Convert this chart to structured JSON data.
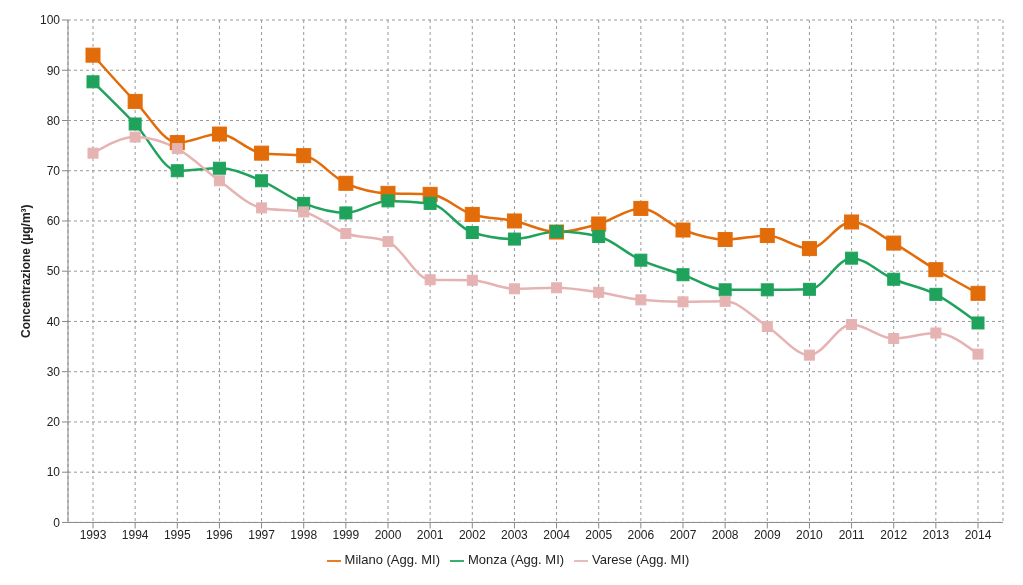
{
  "chart_data": {
    "type": "line",
    "ylabel": "Concentrazione (µg/m³)",
    "categories": [
      "1993",
      "1994",
      "1995",
      "1996",
      "1997",
      "1998",
      "1999",
      "2000",
      "2001",
      "2002",
      "2003",
      "2004",
      "2005",
      "2006",
      "2007",
      "2008",
      "2009",
      "2010",
      "2011",
      "2012",
      "2013",
      "2014"
    ],
    "series": [
      {
        "name": "Milano (Agg. MI)",
        "color": "#e36c0a",
        "values": [
          93,
          83.8,
          75.6,
          77.3,
          73.5,
          73,
          67.5,
          65.5,
          65.3,
          61.3,
          60,
          57.8,
          59.4,
          62.5,
          58.2,
          56.3,
          57.1,
          54.5,
          59.8,
          55.6,
          50.3,
          45.6
        ]
      },
      {
        "name": "Monza (Agg. MI)",
        "color": "#1fa35c",
        "values": [
          87.7,
          79.3,
          70,
          70.5,
          68,
          63.5,
          61.6,
          64,
          63.5,
          57.7,
          56.4,
          57.9,
          56.9,
          52.2,
          49.3,
          46.3,
          46.3,
          46.4,
          52.6,
          48.4,
          45.4,
          39.7
        ]
      },
      {
        "name": "Varese (Agg. MI)",
        "color": "#e6b3b3",
        "values": [
          73.5,
          76.7,
          74.4,
          68,
          62.6,
          61.8,
          57.5,
          55.9,
          48.3,
          48.2,
          46.5,
          46.7,
          45.8,
          44.3,
          43.9,
          44,
          39,
          33.3,
          39.4,
          36.6,
          37.7,
          33.5
        ]
      }
    ],
    "ylim": [
      0,
      100
    ],
    "yticks": [
      0,
      10,
      20,
      30,
      40,
      50,
      60,
      70,
      80,
      90,
      100
    ],
    "grid": true,
    "legend": "bottom",
    "marker": "square",
    "line_style": "solid"
  }
}
